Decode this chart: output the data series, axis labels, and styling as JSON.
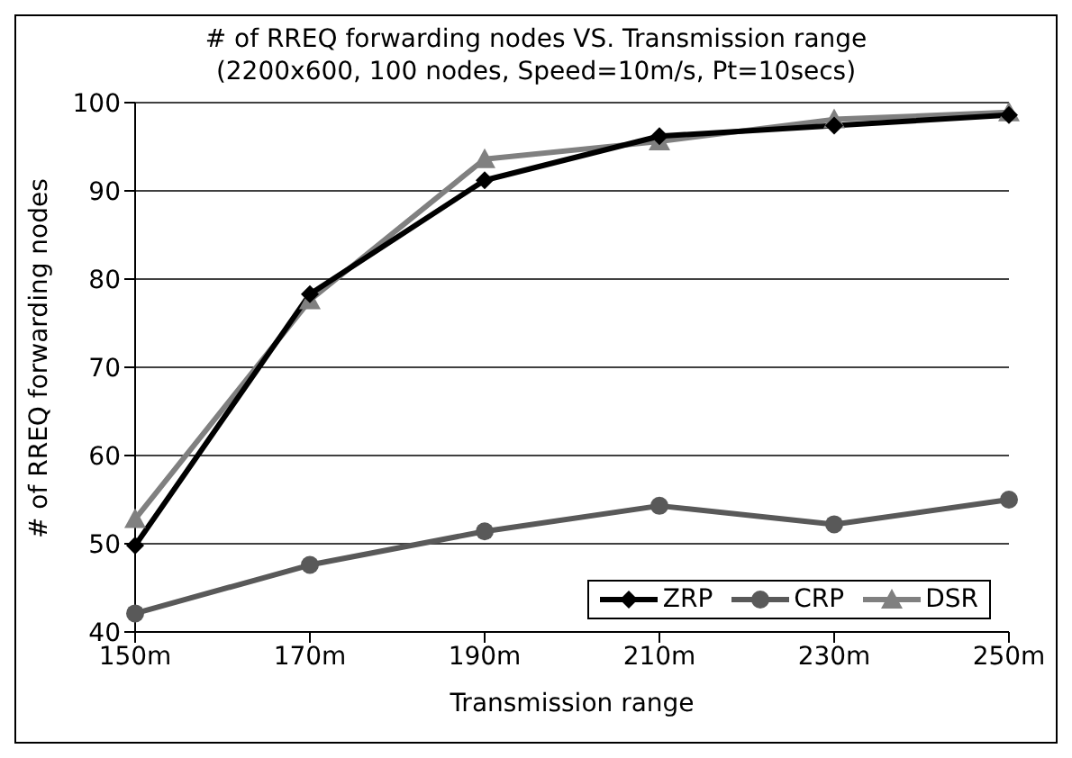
{
  "chart_data": {
    "type": "line",
    "title": "# of RREQ forwarding nodes VS. Transmission range",
    "subtitle": "(2200x600, 100 nodes, Speed=10m/s, Pt=10secs)",
    "xlabel": "Transmission range",
    "ylabel": "# of RREQ forwarding nodes",
    "categories": [
      "150m",
      "170m",
      "190m",
      "210m",
      "230m",
      "250m"
    ],
    "series": [
      {
        "name": "ZRP",
        "color": "#000000",
        "marker": "diamond",
        "values": [
          49.8,
          78.3,
          91.2,
          96.2,
          97.4,
          98.6
        ]
      },
      {
        "name": "CRP",
        "color": "#595959",
        "marker": "circle",
        "values": [
          42.1,
          47.6,
          51.4,
          54.3,
          52.2,
          55.0
        ]
      },
      {
        "name": "DSR",
        "color": "#808080",
        "marker": "triangle",
        "values": [
          52.8,
          77.6,
          93.6,
          95.6,
          98.1,
          98.9
        ]
      }
    ],
    "ylim": [
      40,
      100
    ],
    "yticks": [
      40,
      50,
      60,
      70,
      80,
      90,
      100
    ],
    "grid": "y",
    "legend": "bottom right"
  }
}
